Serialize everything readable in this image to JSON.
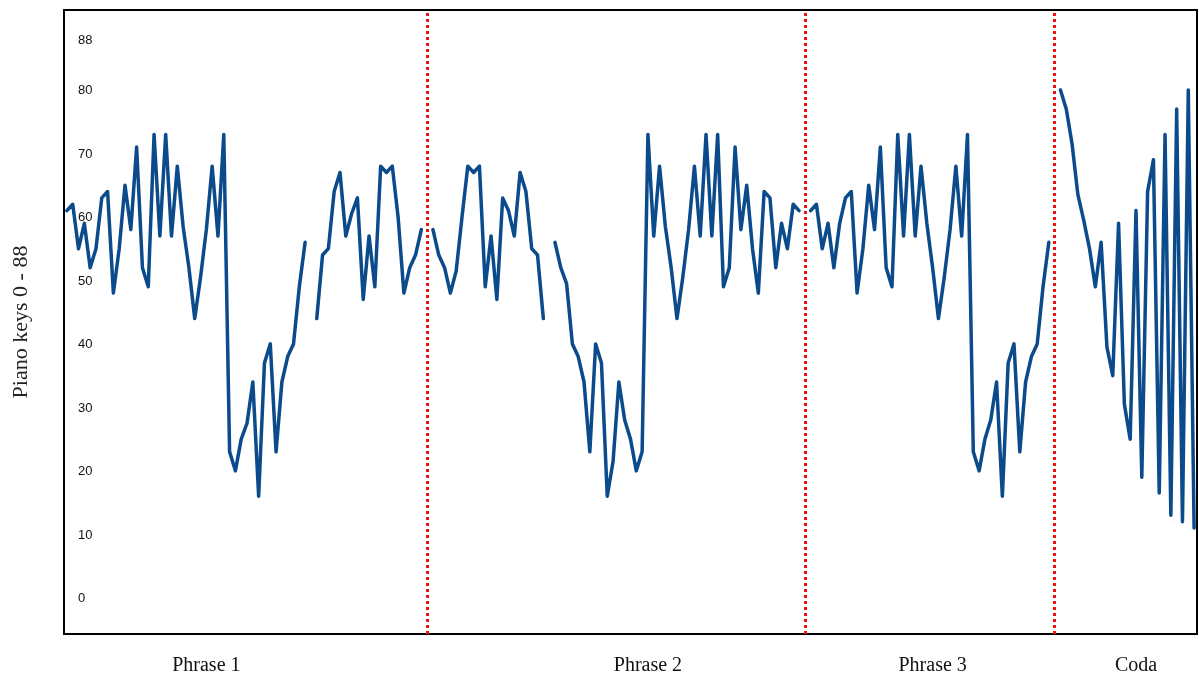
{
  "chart_data": {
    "type": "line",
    "ylabel": "Piano keys 0 - 88",
    "categories": [
      null,
      null,
      null,
      null,
      null,
      null,
      null,
      null,
      null,
      null,
      null,
      null,
      null,
      null,
      null,
      null,
      null,
      null,
      null,
      null,
      null,
      null,
      null,
      null,
      "Phrase 1",
      null,
      null,
      null,
      null,
      null,
      null,
      null,
      null,
      null,
      null,
      null,
      null,
      null,
      null,
      null,
      null,
      null,
      null,
      null,
      null,
      null,
      null,
      null,
      null,
      null,
      null,
      null,
      null,
      null,
      null,
      null,
      null,
      null,
      null,
      null,
      null,
      null,
      null,
      null,
      null,
      null,
      null,
      null,
      null,
      null,
      null,
      null,
      null,
      null,
      null,
      null,
      null,
      null,
      null,
      null,
      null,
      null,
      null,
      null,
      null,
      null,
      null,
      null,
      null,
      null,
      null,
      null,
      null,
      null,
      null,
      null,
      null,
      null,
      null,
      null,
      "Phrase 2",
      null,
      null,
      null,
      null,
      null,
      null,
      null,
      null,
      null,
      null,
      null,
      null,
      null,
      null,
      null,
      null,
      null,
      null,
      null,
      null,
      null,
      null,
      null,
      null,
      null,
      null,
      null,
      null,
      null,
      null,
      null,
      null,
      null,
      null,
      null,
      null,
      null,
      null,
      null,
      null,
      null,
      null,
      null,
      null,
      null,
      null,
      null,
      null,
      "Phrase 3",
      null,
      null,
      null,
      null,
      null,
      null,
      null,
      null,
      null,
      null,
      null,
      null,
      null,
      null,
      null,
      null,
      null,
      null,
      null,
      null,
      null,
      null,
      null,
      null,
      null,
      null,
      null,
      null,
      null,
      null,
      null,
      null,
      null,
      null,
      "Coda",
      null,
      null,
      null,
      null,
      null,
      null,
      null,
      null,
      null,
      null
    ],
    "ylim": [
      -5.7,
      92.6
    ],
    "yticks": [
      0,
      10,
      20,
      30,
      40,
      50,
      60,
      70,
      80,
      88
    ],
    "grid": false,
    "marker": "none",
    "line_style": "solid",
    "series": [
      {
        "color": "#0b4a8b",
        "values": [
          61,
          62,
          55,
          59,
          52,
          55,
          63,
          64,
          48,
          55,
          65,
          58,
          71,
          52,
          49,
          73,
          57,
          73,
          57,
          68,
          58.5,
          52,
          44,
          50.5,
          58,
          68,
          57,
          73,
          23,
          20,
          25,
          27.5,
          34,
          16,
          37,
          40,
          23,
          34,
          38,
          40,
          49,
          56,
          null,
          44,
          54,
          55,
          64,
          67,
          57,
          60.5,
          63,
          47,
          57,
          49,
          68,
          67,
          68,
          60,
          48,
          52,
          54,
          58,
          null,
          58,
          54,
          52,
          48,
          51.5,
          60,
          68,
          67,
          68,
          49,
          57,
          47,
          63,
          61,
          57,
          67,
          64,
          55,
          54,
          44,
          null,
          56,
          52,
          49.5,
          40,
          38,
          34,
          23,
          40,
          37,
          16,
          21.5,
          34,
          28,
          25,
          20,
          23,
          73,
          57,
          68,
          58.5,
          52,
          44,
          50.5,
          58,
          68,
          57,
          73,
          57,
          73,
          49,
          52,
          71,
          58,
          65,
          55,
          48,
          64,
          63,
          52,
          59,
          55,
          62,
          61,
          null,
          61,
          62,
          55,
          59,
          52,
          59,
          63,
          64,
          48,
          55,
          65,
          58,
          71,
          52,
          49,
          73,
          57,
          73,
          57,
          68,
          59,
          52,
          44,
          50.5,
          58,
          68,
          57,
          73,
          23,
          20,
          25,
          28,
          34,
          16,
          37,
          40,
          23,
          34,
          38,
          40,
          49,
          56,
          null,
          80,
          77,
          71.5,
          63.5,
          59.5,
          55,
          49,
          56,
          39.5,
          35,
          59,
          30.5,
          25,
          61,
          19,
          64,
          69,
          16.5,
          73,
          13,
          77,
          12,
          80,
          11
        ]
      }
    ]
  }
}
